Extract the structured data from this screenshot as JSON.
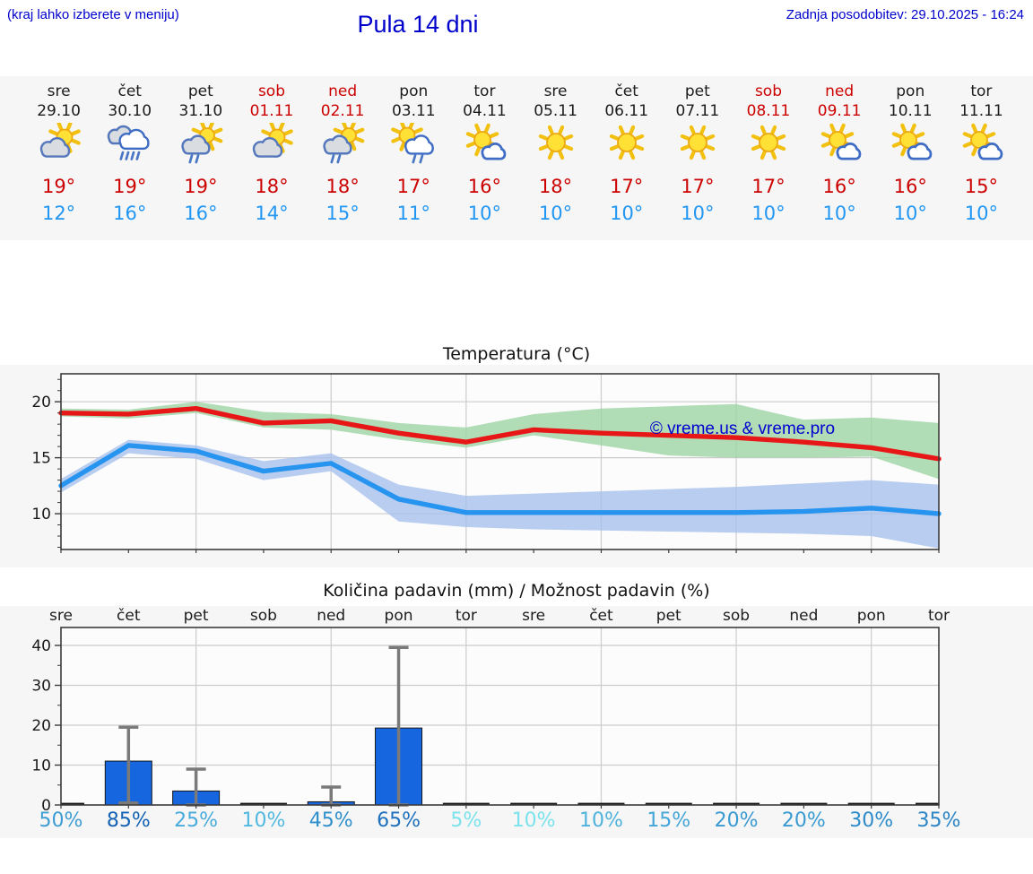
{
  "header": {
    "hint": "(kraj lahko izberete v meniju)",
    "title": "Pula 14 dni",
    "updated": "Zadnja posodobitev: 29.10.2025 - 16:24"
  },
  "forecast": {
    "weekday_color": "#1c1c1c",
    "weekend_color": "#cc0000",
    "tmax_color": "#cc0000",
    "tmin_color": "#2196f3",
    "days": [
      {
        "name": "sre",
        "date": "29.10",
        "weekend": false,
        "icon": "sun-gray-cloud",
        "tmax": "19°",
        "tmin": "12°"
      },
      {
        "name": "čet",
        "date": "30.10",
        "weekend": false,
        "icon": "rain-clouds",
        "tmax": "19°",
        "tmin": "16°"
      },
      {
        "name": "pet",
        "date": "31.10",
        "weekend": false,
        "icon": "sun-cloud-rain",
        "tmax": "19°",
        "tmin": "16°"
      },
      {
        "name": "sob",
        "date": "01.11",
        "weekend": true,
        "icon": "sun-gray-cloud",
        "tmax": "18°",
        "tmin": "14°"
      },
      {
        "name": "ned",
        "date": "02.11",
        "weekend": true,
        "icon": "sun-cloud-rain",
        "tmax": "18°",
        "tmin": "15°"
      },
      {
        "name": "pon",
        "date": "03.11",
        "weekend": false,
        "icon": "sun-whitecloud-rain",
        "tmax": "17°",
        "tmin": "11°"
      },
      {
        "name": "tor",
        "date": "04.11",
        "weekend": false,
        "icon": "sun-small-cloud",
        "tmax": "16°",
        "tmin": "10°"
      },
      {
        "name": "sre",
        "date": "05.11",
        "weekend": false,
        "icon": "sunny",
        "tmax": "18°",
        "tmin": "10°"
      },
      {
        "name": "čet",
        "date": "06.11",
        "weekend": false,
        "icon": "sunny",
        "tmax": "17°",
        "tmin": "10°"
      },
      {
        "name": "pet",
        "date": "07.11",
        "weekend": false,
        "icon": "sunny",
        "tmax": "17°",
        "tmin": "10°"
      },
      {
        "name": "sob",
        "date": "08.11",
        "weekend": true,
        "icon": "sunny",
        "tmax": "17°",
        "tmin": "10°"
      },
      {
        "name": "ned",
        "date": "09.11",
        "weekend": true,
        "icon": "sun-small-cloud",
        "tmax": "16°",
        "tmin": "10°"
      },
      {
        "name": "pon",
        "date": "10.11",
        "weekend": false,
        "icon": "sun-small-cloud",
        "tmax": "16°",
        "tmin": "10°"
      },
      {
        "name": "tor",
        "date": "11.11",
        "weekend": false,
        "icon": "sun-small-cloud",
        "tmax": "15°",
        "tmin": "10°"
      }
    ]
  },
  "chart_data": [
    {
      "type": "line",
      "title": "Temperatura (°C)",
      "watermark": "© vreme.us & vreme.pro",
      "watermark_color": "#0000d0",
      "x_days": [
        "sre 29.10",
        "čet 30.10",
        "pet 31.10",
        "sob 01.11",
        "ned 02.11",
        "pon 03.11",
        "tor 04.11",
        "sre 05.11",
        "čet 06.11",
        "pet 07.11",
        "sob 08.11",
        "ned 09.11",
        "pon 10.11",
        "tor 11.11"
      ],
      "yticks": [
        10,
        15,
        20
      ],
      "ylim": [
        6.8,
        22.5
      ],
      "grid": true,
      "series": [
        {
          "name": "max-temperature",
          "color": "#e81717",
          "values": [
            19.0,
            18.9,
            19.4,
            18.1,
            18.3,
            17.2,
            16.4,
            17.5,
            17.2,
            17.0,
            16.8,
            16.4,
            15.9,
            14.9
          ]
        },
        {
          "name": "min-temperature",
          "color": "#2794ef",
          "values": [
            12.5,
            16.1,
            15.6,
            13.8,
            14.5,
            11.3,
            10.1,
            10.1,
            10.1,
            10.1,
            10.1,
            10.2,
            10.5,
            10.0
          ]
        }
      ],
      "bands": [
        {
          "name": "max-uncertainty",
          "color": "#9dd4a4",
          "upper": [
            19.4,
            19.3,
            20.0,
            19.1,
            18.9,
            18.1,
            17.7,
            18.9,
            19.4,
            19.6,
            19.8,
            18.4,
            18.6,
            18.1
          ],
          "lower": [
            18.7,
            18.5,
            19.0,
            17.7,
            17.5,
            16.6,
            15.9,
            17.0,
            16.1,
            15.2,
            15.0,
            15.0,
            15.1,
            13.1
          ]
        },
        {
          "name": "min-uncertainty",
          "color": "#a6c0ec",
          "upper": [
            13.1,
            16.6,
            16.1,
            14.7,
            15.4,
            12.6,
            11.6,
            11.8,
            12.0,
            12.2,
            12.4,
            12.7,
            13.0,
            12.6
          ],
          "lower": [
            11.9,
            15.4,
            14.9,
            13.0,
            13.8,
            9.3,
            8.8,
            8.6,
            8.5,
            8.4,
            8.3,
            8.2,
            8.0,
            6.9
          ]
        }
      ]
    },
    {
      "type": "bar",
      "title": "Količina padavin (mm) / Možnost padavin (%)",
      "categories": [
        "sre",
        "čet",
        "pet",
        "sob",
        "ned",
        "pon",
        "tor",
        "sre",
        "čet",
        "pet",
        "sob",
        "ned",
        "pon",
        "tor"
      ],
      "values": [
        0,
        11,
        3.5,
        0,
        0.8,
        19.3,
        0,
        0,
        0,
        0,
        0,
        0,
        0,
        0
      ],
      "error_high": [
        0,
        19.5,
        9,
        0,
        4.5,
        39.5,
        0,
        0,
        0,
        0,
        0,
        0,
        0,
        0
      ],
      "error_low": [
        0,
        0.5,
        0,
        0,
        0,
        0,
        0,
        0,
        0,
        0,
        0,
        0,
        0,
        0
      ],
      "bar_color": "#1666e0",
      "error_color": "#7a7a7a",
      "yticks": [
        0,
        10,
        20,
        30,
        40
      ],
      "ylim": [
        0,
        44.5
      ],
      "grid": true,
      "probability": [
        "50%",
        "85%",
        "25%",
        "10%",
        "45%",
        "65%",
        "5%",
        "10%",
        "10%",
        "15%",
        "20%",
        "20%",
        "30%",
        "35%"
      ],
      "probability_colors": [
        "#3d9dd3",
        "#1462b4",
        "#48abdc",
        "#51b9e0",
        "#2e8fcb",
        "#1e70bd",
        "#7ce2ec",
        "#7ce2ec",
        "#4eb2dd",
        "#43a5d8",
        "#3a9ad2",
        "#3a9ad2",
        "#2e8bc9",
        "#2a84c5"
      ]
    }
  ]
}
